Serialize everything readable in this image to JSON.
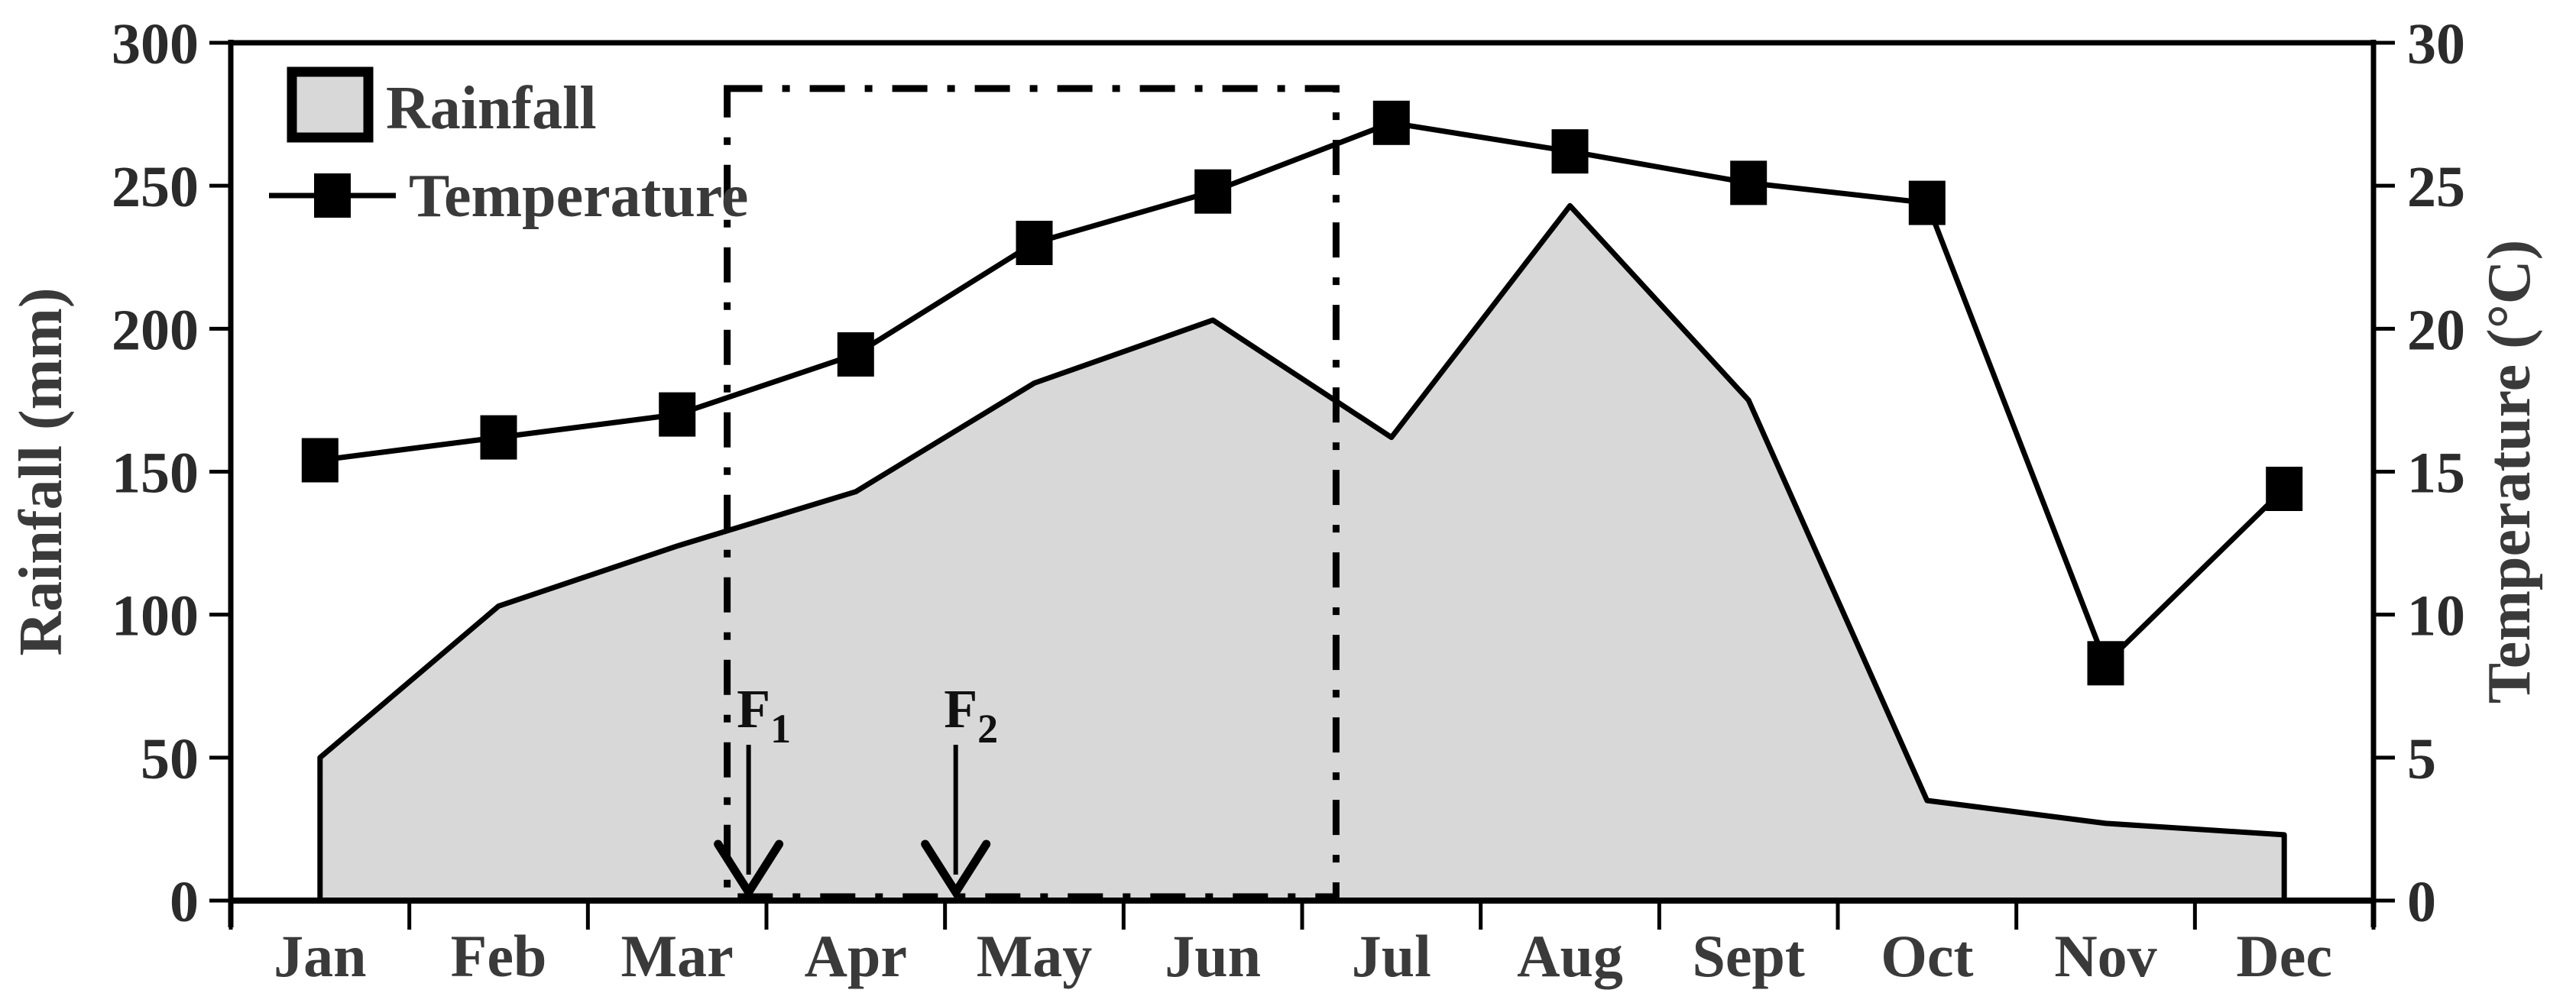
{
  "chart_data": {
    "type": "area",
    "subtype": "dual-axis climograph (area + line with square markers)",
    "categories": [
      "Jan",
      "Feb",
      "Mar",
      "Apr",
      "May",
      "Jun",
      "Jul",
      "Aug",
      "Sept",
      "Oct",
      "Nov",
      "Dec"
    ],
    "series": [
      {
        "name": "Rainfall",
        "type": "area",
        "axis": "left",
        "values": [
          50,
          103,
          124,
          143,
          181,
          203,
          162,
          243,
          175,
          35,
          27,
          23
        ]
      },
      {
        "name": "Temperature",
        "type": "line",
        "axis": "right",
        "marker": "filled-square",
        "values": [
          15.4,
          16.2,
          17.0,
          19.1,
          23.0,
          24.8,
          27.2,
          26.2,
          25.1,
          24.4,
          8.3,
          14.4
        ]
      }
    ],
    "left_axis": {
      "label": "Rainfall (mm)",
      "min": 0,
      "max": 300,
      "ticks": [
        0,
        50,
        100,
        150,
        200,
        250,
        300
      ]
    },
    "right_axis": {
      "label": "Temperature (°C)",
      "min": 0,
      "max": 30,
      "ticks": [
        0,
        5,
        10,
        15,
        20,
        25,
        30
      ]
    },
    "x_axis": {
      "boundary_ticks": 13,
      "labels_centered_between_ticks": true
    },
    "legend": {
      "position": "top-left-inside",
      "entries": [
        {
          "label": "Rainfall",
          "swatch": "gray-filled-box"
        },
        {
          "label": "Temperature",
          "swatch": "line-with-square-marker"
        }
      ]
    },
    "annotations": {
      "dash_dot_box": {
        "x_start_month": 2.78,
        "x_end_month": 6.19,
        "top_mm": 284,
        "bottom_mm": 0,
        "style": "dash-dot"
      },
      "arrows": [
        {
          "label": "F",
          "sub": "1",
          "x_month": 2.9,
          "points_to": "x-axis"
        },
        {
          "label": "F",
          "sub": "2",
          "x_month": 4.06,
          "points_to": "x-axis"
        }
      ]
    },
    "grid": false,
    "colors": {
      "area_fill": "#d8d8d8",
      "stroke": "#000000",
      "tick_text": "#2b2b2b",
      "label_text": "#3a3a3a",
      "background": "#ffffff"
    }
  }
}
